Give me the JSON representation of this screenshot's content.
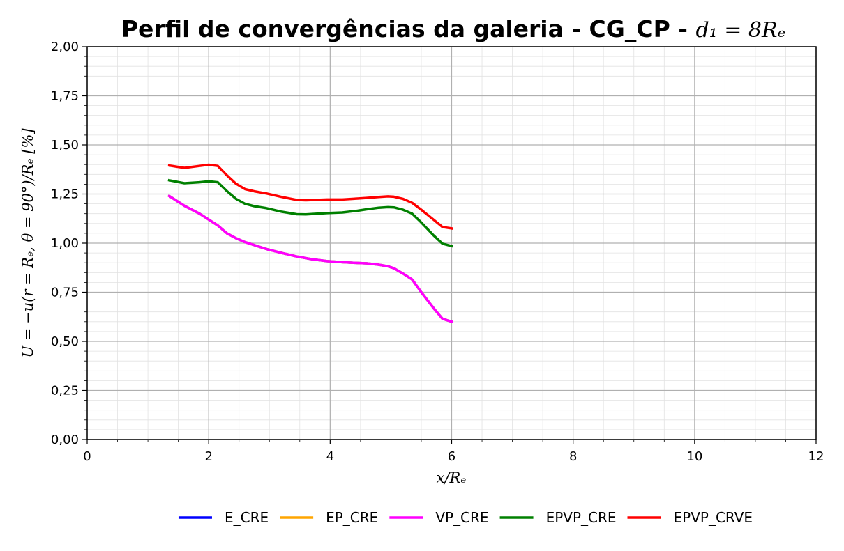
{
  "chart_data": {
    "type": "line",
    "title": {
      "text": "Perfil de convergências da galeria - CG_CP - ",
      "math": "d₁ = 8Rₑ"
    },
    "xlabel": "x/Rₑ",
    "ylabel": "U = −u(r = Rₑ, θ = 90°)/Rₑ [%]",
    "xlim": [
      0,
      12
    ],
    "ylim": [
      0,
      2
    ],
    "xticks": [
      0,
      2,
      4,
      6,
      8,
      10,
      12
    ],
    "xtick_labels": [
      "0",
      "2",
      "4",
      "6",
      "8",
      "10",
      "12"
    ],
    "yticks": [
      0,
      0.25,
      0.5,
      0.75,
      1.0,
      1.25,
      1.5,
      1.75,
      2.0
    ],
    "ytick_labels": [
      "0,00",
      "0,25",
      "0,50",
      "0,75",
      "1,00",
      "1,25",
      "1,50",
      "1,75",
      "2,00"
    ],
    "grid": true,
    "minor_grid": true,
    "legend_position": "bottom-center",
    "series": [
      {
        "name": "E_CRE",
        "color": "#0000ff",
        "x": [
          1.35,
          1.6,
          1.85,
          2.0,
          2.15,
          2.3,
          2.45,
          2.6,
          2.75,
          2.95,
          3.2,
          3.45,
          3.7,
          3.95,
          4.2,
          4.45,
          4.6,
          4.8,
          4.95,
          5.05,
          5.2,
          5.35,
          5.5,
          5.7,
          5.85,
          6.0
        ],
        "y": [
          1.24,
          1.19,
          1.15,
          1.12,
          1.09,
          1.05,
          1.025,
          1.005,
          0.99,
          0.97,
          0.95,
          0.932,
          0.918,
          0.908,
          0.903,
          0.899,
          0.897,
          0.89,
          0.882,
          0.872,
          0.845,
          0.815,
          0.75,
          0.67,
          0.615,
          0.6
        ]
      },
      {
        "name": "EP_CRE",
        "color": "#ffa500",
        "x": [
          1.35,
          1.6,
          1.85,
          2.0,
          2.15,
          2.3,
          2.45,
          2.6,
          2.75,
          2.95,
          3.2,
          3.45,
          3.7,
          3.95,
          4.2,
          4.45,
          4.6,
          4.8,
          4.95,
          5.05,
          5.2,
          5.35,
          5.5,
          5.7,
          5.85,
          6.0
        ],
        "y": [
          1.24,
          1.19,
          1.15,
          1.12,
          1.09,
          1.05,
          1.025,
          1.005,
          0.99,
          0.97,
          0.95,
          0.932,
          0.918,
          0.908,
          0.903,
          0.899,
          0.897,
          0.89,
          0.882,
          0.872,
          0.845,
          0.815,
          0.75,
          0.67,
          0.615,
          0.6
        ]
      },
      {
        "name": "VP_CRE",
        "color": "#ff00ff",
        "x": [
          1.35,
          1.6,
          1.85,
          2.0,
          2.15,
          2.3,
          2.45,
          2.6,
          2.75,
          2.95,
          3.2,
          3.45,
          3.7,
          3.95,
          4.2,
          4.45,
          4.6,
          4.8,
          4.95,
          5.05,
          5.2,
          5.35,
          5.5,
          5.7,
          5.85,
          6.0
        ],
        "y": [
          1.24,
          1.19,
          1.15,
          1.12,
          1.09,
          1.05,
          1.025,
          1.005,
          0.99,
          0.97,
          0.95,
          0.932,
          0.918,
          0.908,
          0.903,
          0.899,
          0.897,
          0.89,
          0.882,
          0.872,
          0.845,
          0.815,
          0.75,
          0.67,
          0.615,
          0.6
        ]
      },
      {
        "name": "EPVP_CRE",
        "color": "#008000",
        "x": [
          1.35,
          1.6,
          1.85,
          2.0,
          2.15,
          2.3,
          2.45,
          2.6,
          2.75,
          2.95,
          3.2,
          3.45,
          3.6,
          3.95,
          4.2,
          4.45,
          4.6,
          4.8,
          4.95,
          5.05,
          5.2,
          5.35,
          5.5,
          5.7,
          5.85,
          6.0
        ],
        "y": [
          1.32,
          1.305,
          1.31,
          1.315,
          1.31,
          1.265,
          1.225,
          1.2,
          1.188,
          1.178,
          1.16,
          1.147,
          1.146,
          1.153,
          1.156,
          1.165,
          1.172,
          1.18,
          1.183,
          1.182,
          1.17,
          1.15,
          1.105,
          1.04,
          0.997,
          0.985
        ]
      },
      {
        "name": "EPVP_CRVE",
        "color": "#ff0000",
        "x": [
          1.35,
          1.6,
          1.85,
          2.0,
          2.15,
          2.3,
          2.45,
          2.6,
          2.75,
          2.95,
          3.2,
          3.45,
          3.6,
          3.95,
          4.2,
          4.45,
          4.6,
          4.8,
          4.95,
          5.05,
          5.2,
          5.35,
          5.5,
          5.7,
          5.85,
          6.0
        ],
        "y": [
          1.395,
          1.383,
          1.393,
          1.399,
          1.393,
          1.345,
          1.302,
          1.275,
          1.264,
          1.253,
          1.235,
          1.22,
          1.218,
          1.222,
          1.222,
          1.227,
          1.23,
          1.235,
          1.238,
          1.236,
          1.225,
          1.205,
          1.17,
          1.12,
          1.082,
          1.075
        ]
      }
    ]
  }
}
